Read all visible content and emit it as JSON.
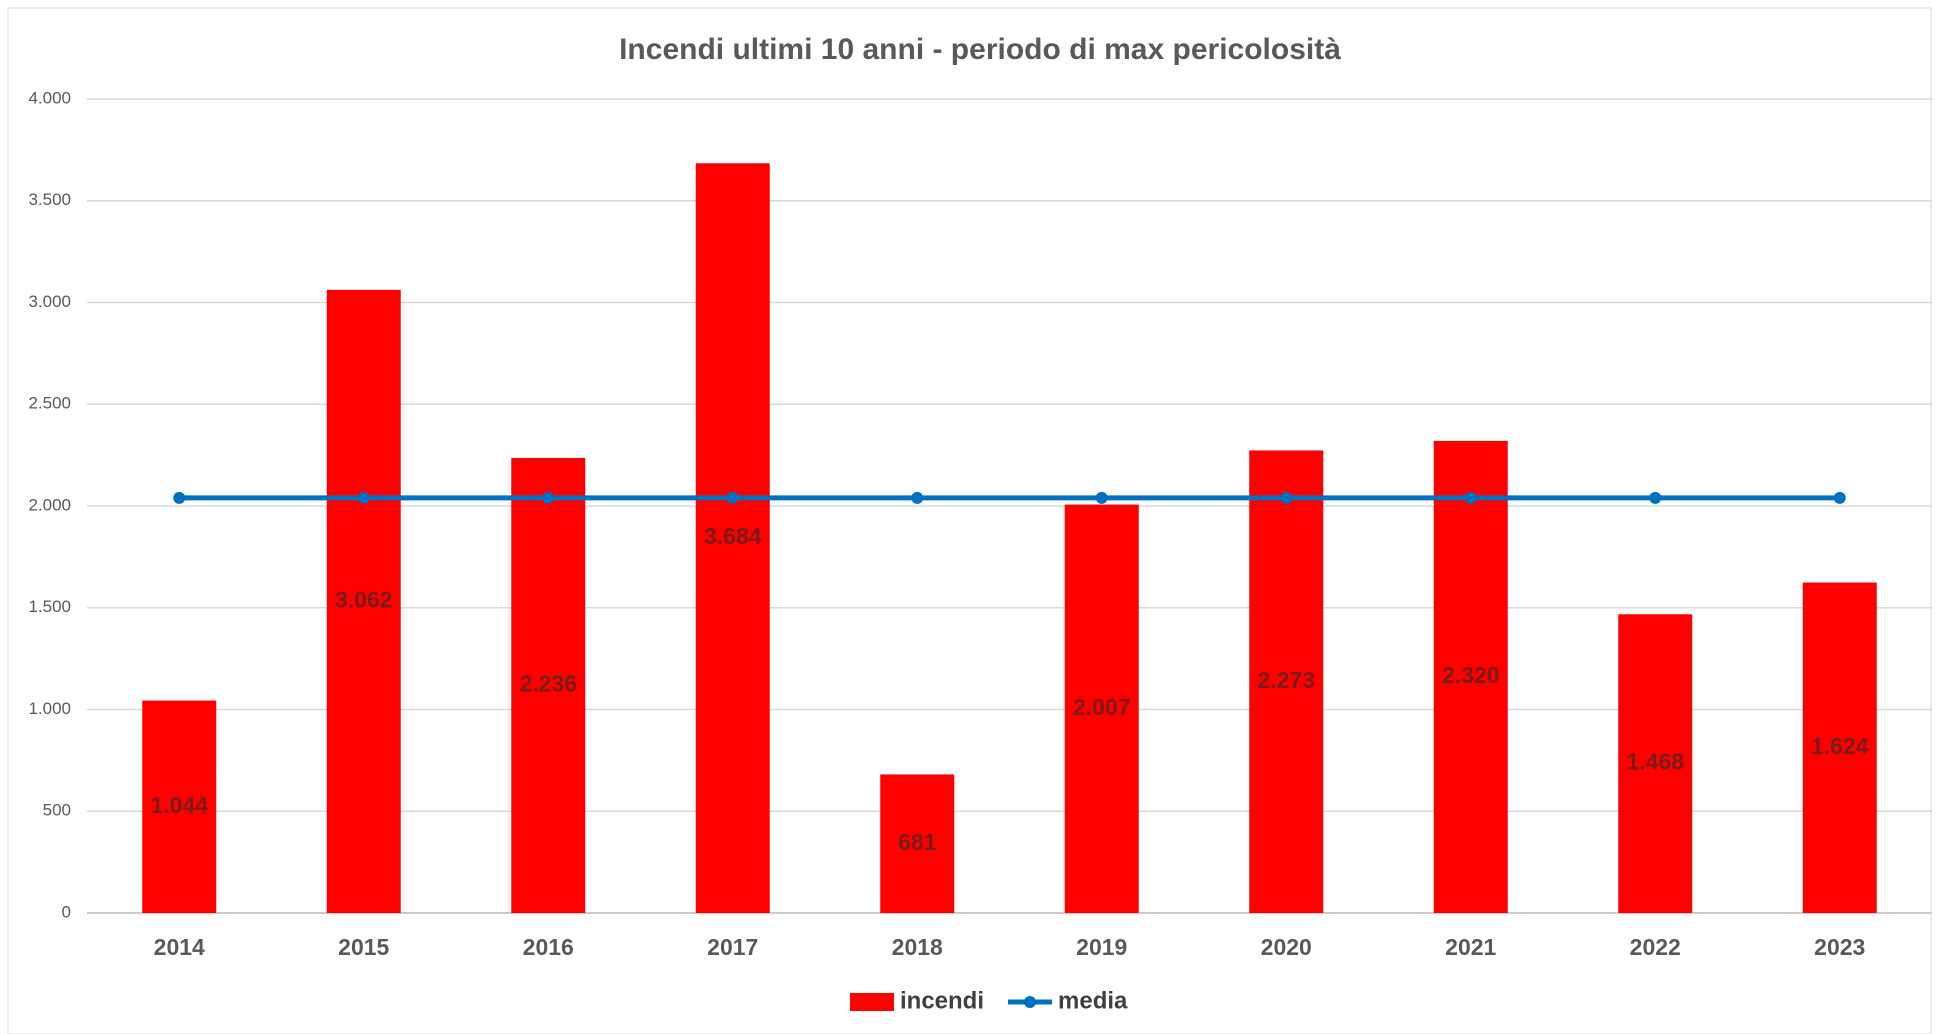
{
  "chart_data": {
    "type": "bar",
    "title": "Incendi ultimi 10 anni - periodo di max pericolosità",
    "categories": [
      "2014",
      "2015",
      "2016",
      "2017",
      "2018",
      "2019",
      "2020",
      "2021",
      "2022",
      "2023"
    ],
    "series": [
      {
        "name": "incendi",
        "type": "bar",
        "color": "#ff0000",
        "values": [
          1044,
          3062,
          2236,
          3684,
          681,
          2007,
          2273,
          2320,
          1468,
          1624
        ],
        "value_labels": [
          "1.044",
          "3.062",
          "2.236",
          "3.684",
          "681",
          "2.007",
          "2.273",
          "2.320",
          "1.468",
          "1.624"
        ]
      },
      {
        "name": "media",
        "type": "line",
        "color": "#0070c0",
        "values": [
          2039.9,
          2039.9,
          2039.9,
          2039.9,
          2039.9,
          2039.9,
          2039.9,
          2039.9,
          2039.9,
          2039.9
        ]
      }
    ],
    "ylim": [
      0,
      4000
    ],
    "yticks": [
      0,
      500,
      {
        "value": 1000,
        "label": "1.000"
      },
      {
        "value": 1500,
        "label": "1.500"
      },
      {
        "value": 2000,
        "label": "2.000"
      },
      {
        "value": 2500,
        "label": "2.500"
      },
      {
        "value": 3000,
        "label": "3.000"
      },
      {
        "value": 3500,
        "label": "3.500"
      },
      {
        "value": 4000,
        "label": "4.000"
      }
    ],
    "grid": true,
    "legend": "bottom"
  }
}
